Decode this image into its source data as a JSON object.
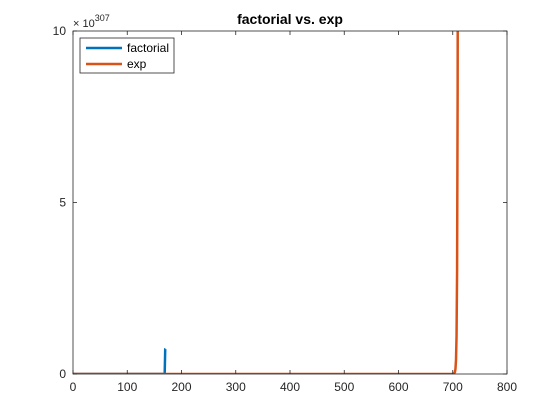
{
  "chart_data": {
    "type": "line",
    "title": "factorial vs. exp",
    "xlabel": "",
    "ylabel": "",
    "xlim": [
      0,
      800
    ],
    "ylim": [
      0,
      1e+308
    ],
    "y_exponent_label": {
      "base": "× 10",
      "power": "307"
    },
    "xticks": [
      0,
      100,
      200,
      300,
      400,
      500,
      600,
      700,
      800
    ],
    "xtick_labels": [
      "0",
      "100",
      "200",
      "300",
      "400",
      "500",
      "600",
      "700",
      "800"
    ],
    "yticks": [
      0,
      5e+307,
      1e+308
    ],
    "ytick_labels": [
      "0",
      "5",
      "10"
    ],
    "grid": false,
    "legend": {
      "placement": "top-left"
    },
    "series": [
      {
        "name": "factorial",
        "color": "#0072BD",
        "x": [
          0,
          100,
          165,
          166,
          167,
          168,
          169,
          170,
          170.2
        ],
        "y": [
          0,
          0,
          0,
          9e+297,
          1.5e+300,
          2.5e+302,
          4.3e+304,
          7.26e+306,
          7.26e+306
        ]
      },
      {
        "name": "exp",
        "color": "#D95319",
        "x": [
          0,
          600,
          695,
          700,
          702,
          704,
          705,
          706,
          707,
          708,
          709,
          709.78
        ],
        "y": [
          0,
          0,
          0,
          1.01e+304,
          7.5e+304,
          5.5e+305,
          1.5e+306,
          4.09e+306,
          1.11e+307,
          3.02e+307,
          8.22e+307,
          1.797e+308
        ]
      }
    ]
  }
}
